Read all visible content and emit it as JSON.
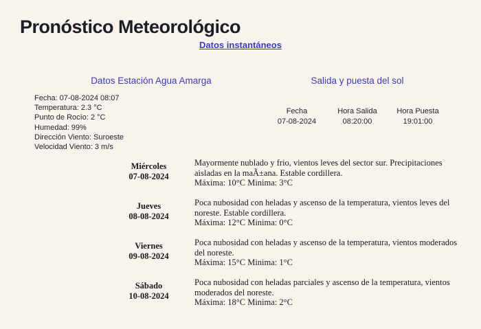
{
  "page": {
    "title": "Pronóstico Meteorológico",
    "instant_link_label": "Datos instantáneos"
  },
  "station": {
    "header": "Datos Estación Agua Amarga",
    "lines": [
      "Fecha: 07-08-2024 08:07",
      "Temperatura: 2.3 °C",
      "Punto de Rocío: 2 °C",
      "Humedad: 99%",
      "Dirección Viento: Suroeste",
      "Velocidad Viento: 3 m/s"
    ]
  },
  "sun": {
    "header": "Salida y puesta del sol",
    "columns": [
      "Fecha",
      "Hora Salida",
      "Hora Puesta"
    ],
    "values": [
      "07-08-2024",
      "08:20:00",
      "19:01:00"
    ]
  },
  "forecast": {
    "rows": [
      {
        "day": "Miércoles",
        "date": "07-08-2024",
        "text": "Mayormente nublado y frio, vientos leves del sector sur. Precipitaciones aisladas en la maÃ±ana. Estable cordillera.",
        "minmax": "Máxima: 10°C Minima: 3°C"
      },
      {
        "day": "Jueves",
        "date": "08-08-2024",
        "text": "Poca nubosidad con heladas y ascenso de la temperatura, vientos leves del noreste. Estable cordillera.",
        "minmax": "Máxima: 12°C Minima: 0°C"
      },
      {
        "day": "Viernes",
        "date": "09-08-2024",
        "text": "Poca nubosidad con heladas y ascenso de la temperatura, vientos moderados del noreste.",
        "minmax": "Máxima: 15°C Minima: 1°C"
      },
      {
        "day": "Sábado",
        "date": "10-08-2024",
        "text": "Poca nubosidad con heladas parciales y ascenso de la temperatura, vientos moderados del noreste.",
        "minmax": "Máxima: 18°C Minima: 2°C"
      }
    ]
  },
  "colors": {
    "background": "#f8f4ed",
    "title_text": "#1d1d27",
    "link_accent": "#3b3bb2",
    "body_text": "#1a1a1a"
  }
}
